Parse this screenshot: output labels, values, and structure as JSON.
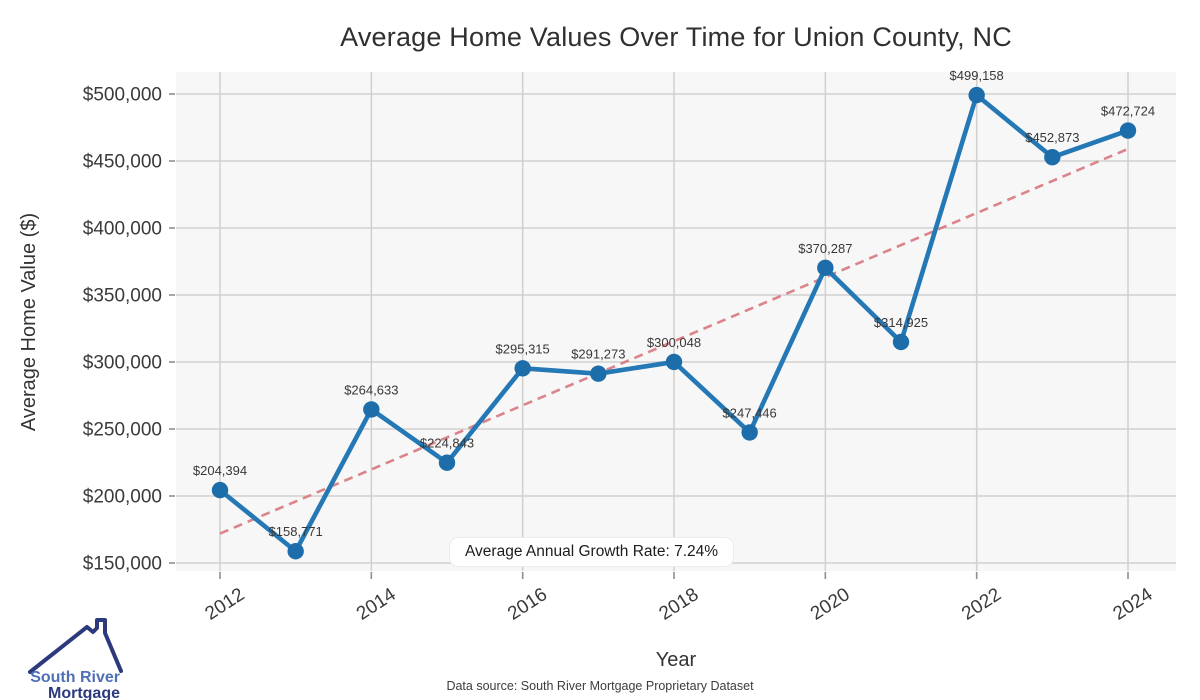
{
  "chart_data": {
    "type": "line",
    "title": "Average Home Values Over Time for Union County, NC",
    "xlabel": "Year",
    "ylabel": "Average Home Value ($)",
    "x": [
      2012,
      2013,
      2014,
      2015,
      2016,
      2017,
      2018,
      2019,
      2020,
      2021,
      2022,
      2023,
      2024
    ],
    "values": [
      204394,
      158771,
      264633,
      224843,
      295315,
      291273,
      300048,
      247446,
      370287,
      314925,
      499158,
      452873,
      472724
    ],
    "point_labels": [
      "$204,394",
      "$158,771",
      "$264,633",
      "$224,843",
      "$295,315",
      "$291,273",
      "$300,048",
      "$247,446",
      "$370,287",
      "$314,925",
      "$499,158",
      "$452,873",
      "$472,724"
    ],
    "xticks": [
      2012,
      2014,
      2016,
      2018,
      2020,
      2022,
      2024
    ],
    "xtick_labels": [
      "2012",
      "2014",
      "2016",
      "2018",
      "2020",
      "2022",
      "2024"
    ],
    "ytick_values": [
      150000,
      200000,
      250000,
      300000,
      350000,
      400000,
      450000,
      500000
    ],
    "ytick_labels": [
      "$150,000",
      "$200,000",
      "$250,000",
      "$300,000",
      "$350,000",
      "$400,000",
      "$450,000",
      "$500,000"
    ],
    "ylim": [
      150000,
      500000
    ],
    "grid": true,
    "legend": "none",
    "trend": {
      "x": [
        2012,
        2024
      ],
      "y": [
        172000,
        459000
      ],
      "style": "dashed"
    },
    "annotation": "Average Annual Growth Rate: 7.24%",
    "colors": {
      "line": "#2478b5",
      "marker": "#1e6dab",
      "trend": "#d9787f",
      "grid": "#d0d0d0",
      "plot_bg": "#f7f7f7",
      "tick_mark": "#8f8f8f"
    }
  },
  "footer": {
    "data_source": "Data source: South River Mortgage Proprietary Dataset"
  },
  "logo": {
    "line1": "South River",
    "line2": "Mortgage",
    "accent": "#4f6fb7",
    "navy": "#2c3a7d"
  }
}
